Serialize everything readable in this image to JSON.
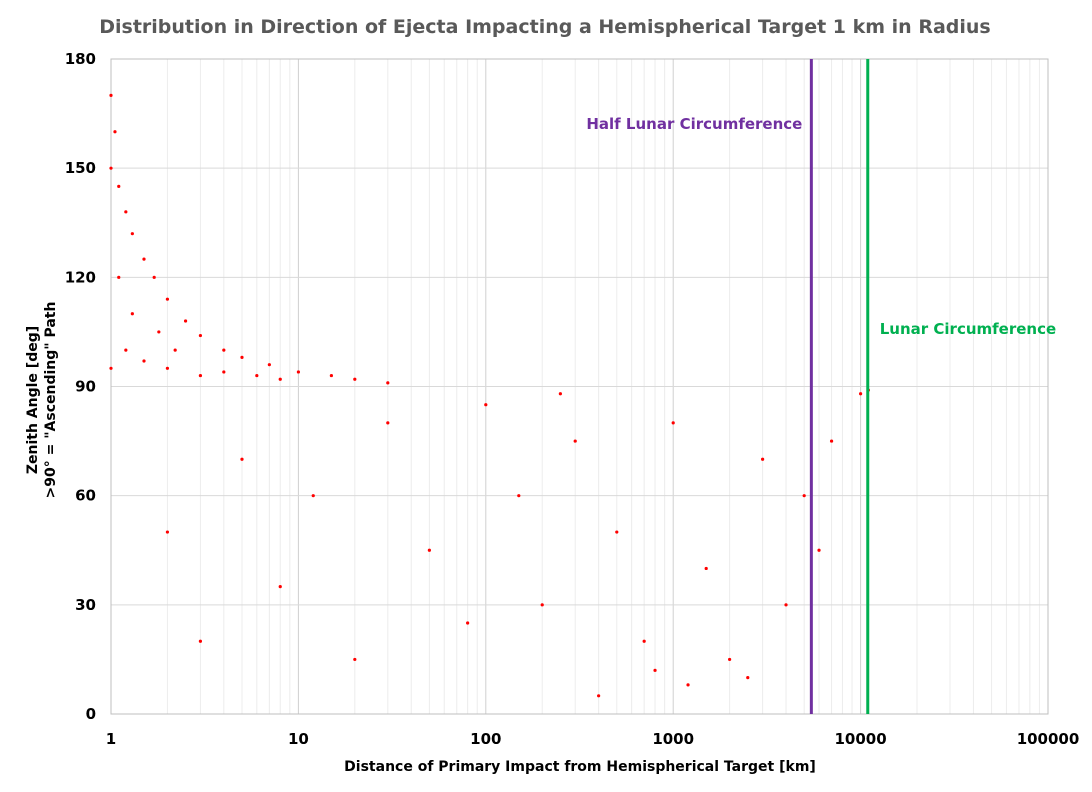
{
  "chart_data": {
    "type": "scatter",
    "title": "Distribution in Direction of Ejecta Impacting a Hemispherical Target 1 km in Radius",
    "xlabel": "Distance of Primary Impact from Hemispherical Target [km]",
    "ylabel_line1": "Zenith Angle [deg]",
    "ylabel_line2": ">90° = \"Ascending\" Path",
    "x_scale": "log",
    "xlim": [
      1,
      100000
    ],
    "ylim": [
      0,
      180
    ],
    "x_ticks": [
      1,
      10,
      100,
      1000,
      10000,
      100000
    ],
    "x_tick_labels": [
      "1",
      "10",
      "100",
      "1000",
      "10000",
      "100000"
    ],
    "y_ticks": [
      0,
      30,
      60,
      90,
      120,
      150,
      180
    ],
    "y_tick_labels": [
      "0",
      "30",
      "60",
      "90",
      "120",
      "150",
      "180"
    ],
    "grid": true,
    "legend": "none",
    "series": [
      {
        "color": "#ff0000",
        "marker": "dot",
        "points": [
          [
            1.0,
            170
          ],
          [
            1.0,
            150
          ],
          [
            1.05,
            160
          ],
          [
            1.1,
            145
          ],
          [
            1.2,
            138
          ],
          [
            1.3,
            132
          ],
          [
            1.5,
            125
          ],
          [
            1.7,
            120
          ],
          [
            2.0,
            114
          ],
          [
            2.5,
            108
          ],
          [
            3.0,
            104
          ],
          [
            4.0,
            100
          ],
          [
            5.0,
            98
          ],
          [
            7.0,
            96
          ],
          [
            10,
            94
          ],
          [
            15,
            93
          ],
          [
            20,
            92
          ],
          [
            30,
            91
          ],
          [
            1.2,
            100
          ],
          [
            1.5,
            97
          ],
          [
            2.0,
            95
          ],
          [
            3.0,
            93
          ],
          [
            1.0,
            95
          ],
          [
            1.1,
            120
          ],
          [
            1.3,
            110
          ],
          [
            1.8,
            105
          ],
          [
            2.2,
            100
          ],
          [
            4.0,
            94
          ],
          [
            6.0,
            93
          ],
          [
            8.0,
            92
          ],
          [
            2,
            50
          ],
          [
            3,
            20
          ],
          [
            5,
            70
          ],
          [
            8,
            35
          ],
          [
            12,
            60
          ],
          [
            20,
            15
          ],
          [
            30,
            80
          ],
          [
            50,
            45
          ],
          [
            80,
            25
          ],
          [
            100,
            85
          ],
          [
            150,
            60
          ],
          [
            200,
            30
          ],
          [
            300,
            75
          ],
          [
            500,
            50
          ],
          [
            700,
            20
          ],
          [
            1000,
            80
          ],
          [
            1500,
            40
          ],
          [
            2000,
            15
          ],
          [
            3000,
            70
          ],
          [
            5000,
            60
          ],
          [
            7000,
            75
          ],
          [
            10000,
            88
          ],
          [
            11000,
            89
          ],
          [
            4000,
            30
          ],
          [
            6000,
            45
          ],
          [
            2500,
            10
          ],
          [
            1200,
            8
          ],
          [
            800,
            12
          ],
          [
            400,
            5
          ],
          [
            250,
            88
          ]
        ]
      }
    ],
    "reference_lines": [
      {
        "label": "Half Lunar Circumference",
        "x": 5460,
        "color": "#7030a0"
      },
      {
        "label": "Lunar Circumference",
        "x": 10920,
        "color": "#00b050"
      }
    ]
  }
}
